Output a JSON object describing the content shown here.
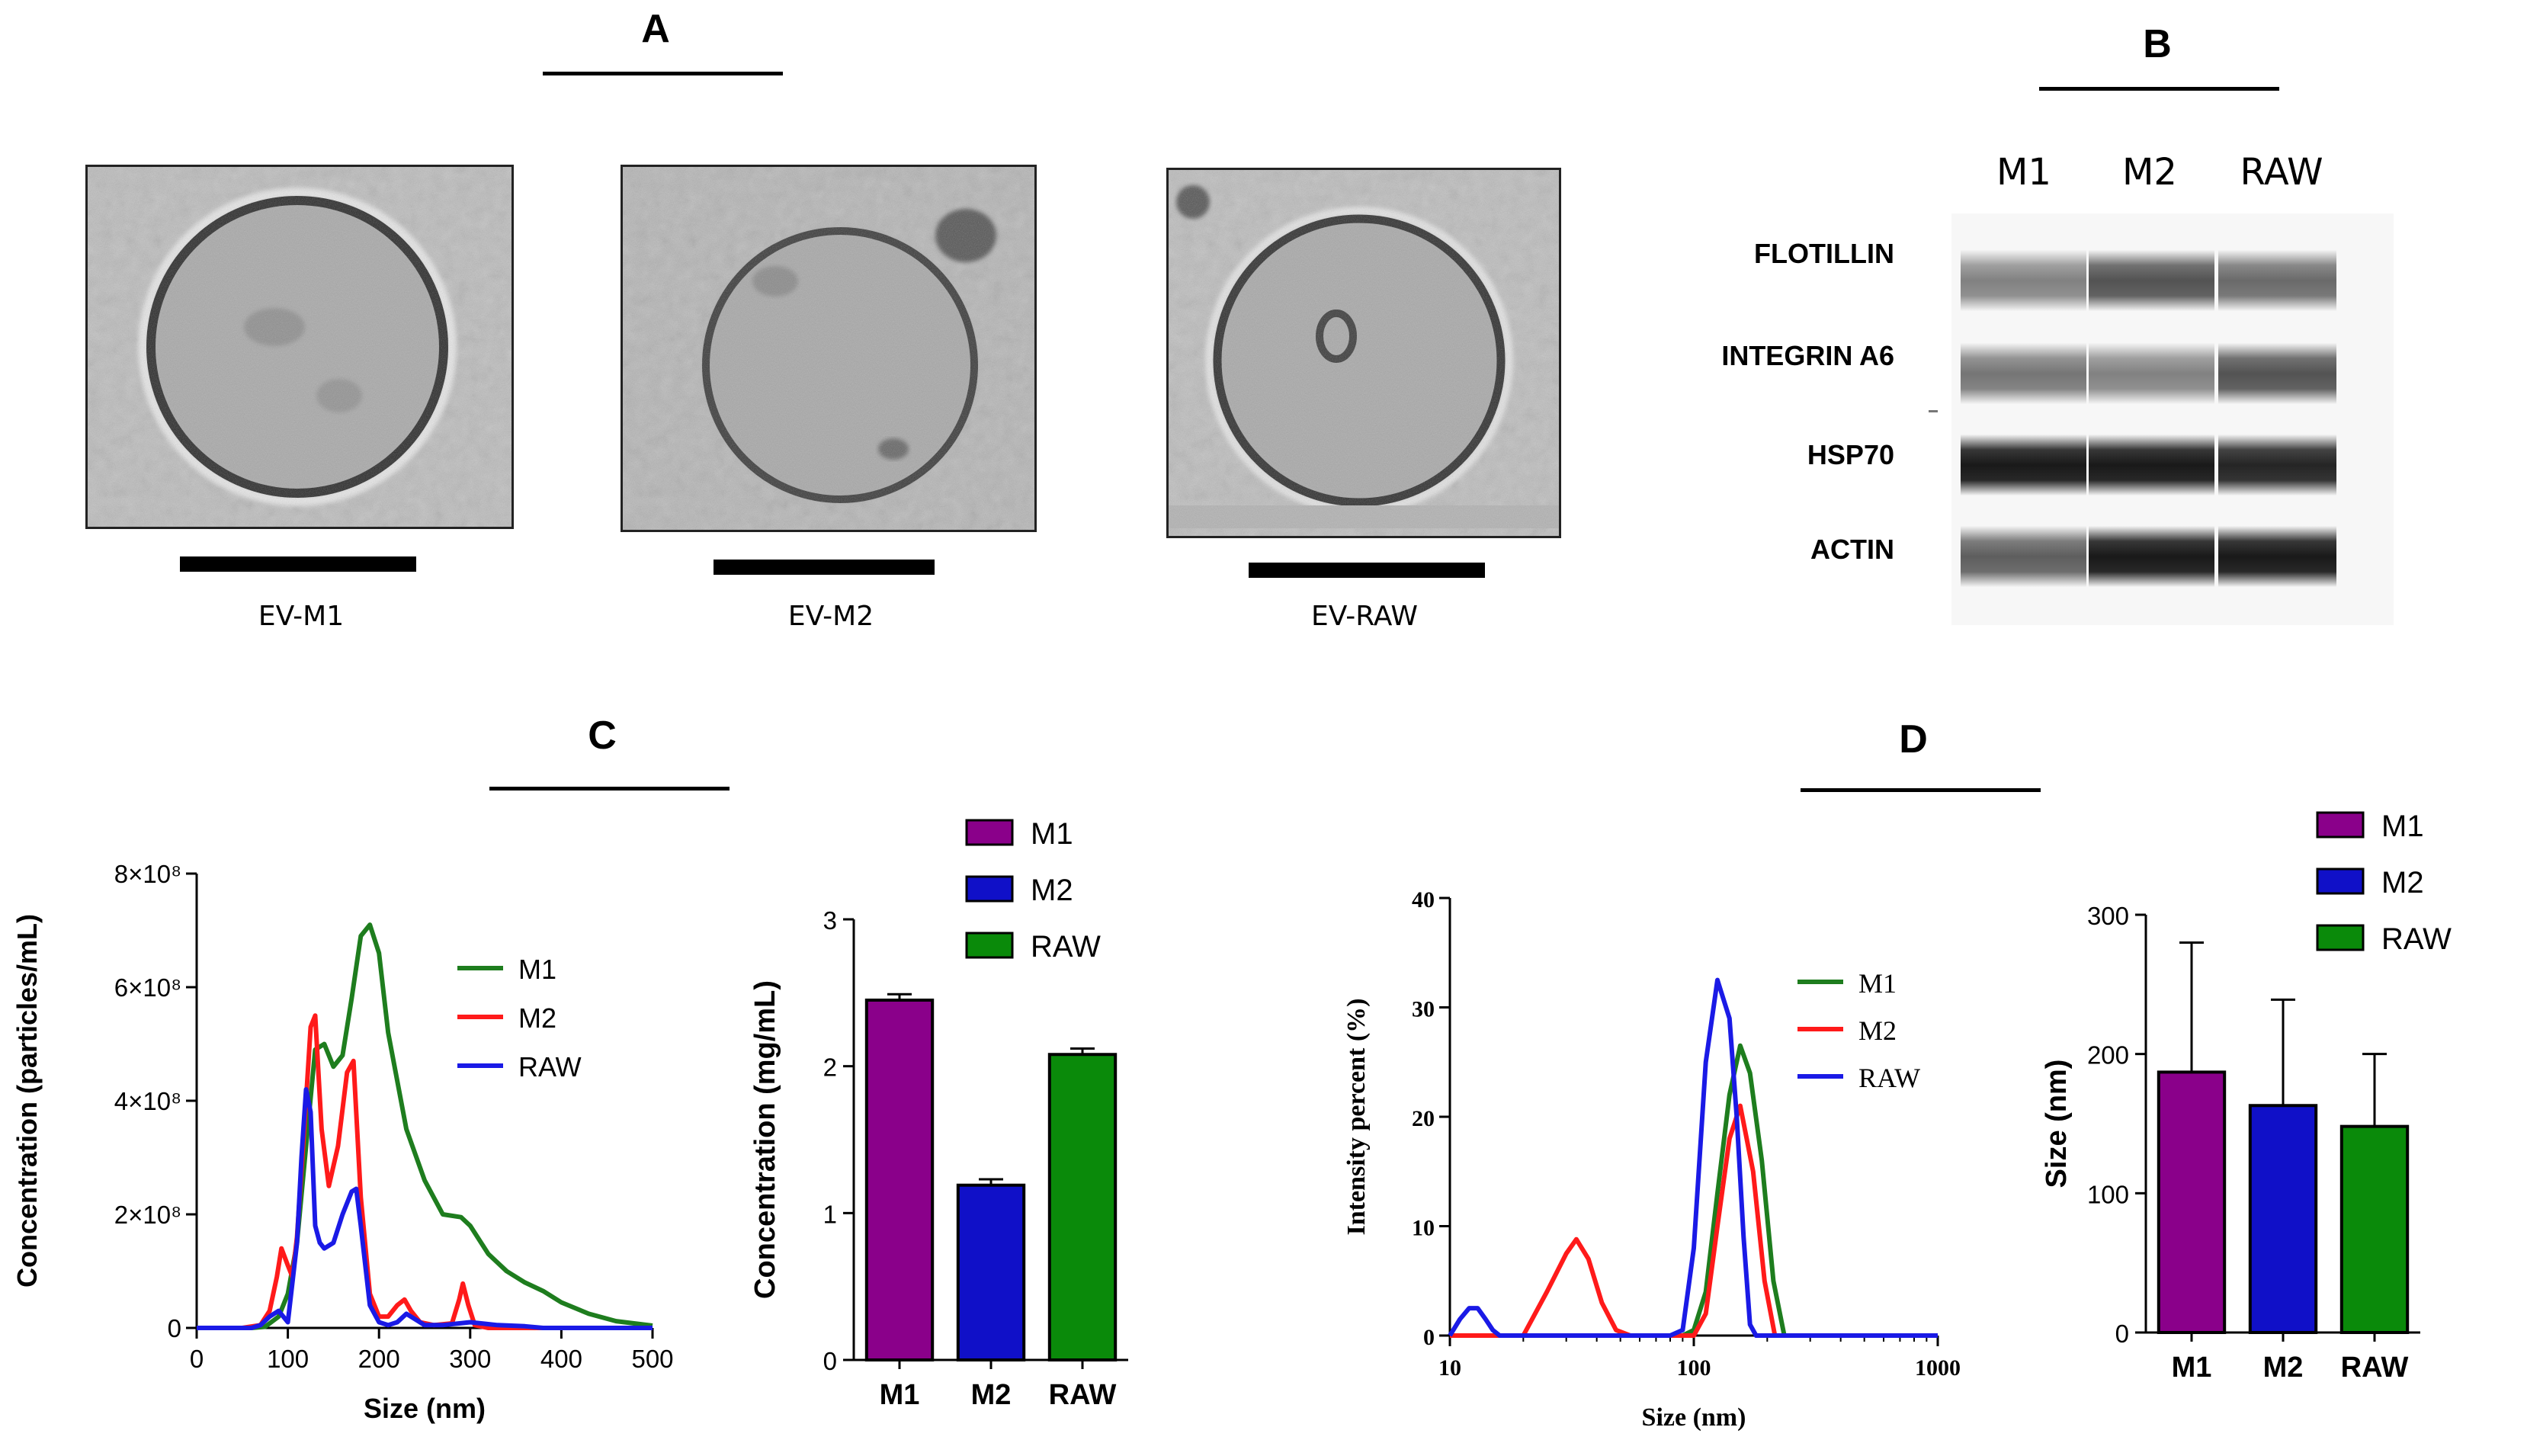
{
  "panels": {
    "a": "A",
    "b": "B",
    "c": "C",
    "d": "D"
  },
  "em_images": [
    {
      "caption": "EV-M1"
    },
    {
      "caption": "EV-M2"
    },
    {
      "caption": "EV-RAW"
    }
  ],
  "western_blot": {
    "columns": [
      "M1",
      "M2",
      "RAW"
    ],
    "rows": [
      "FLOTILLIN",
      "INTEGRIN A6",
      "HSP70",
      "ACTIN"
    ],
    "band_intensity": [
      [
        0.55,
        0.75,
        0.65
      ],
      [
        0.6,
        0.55,
        0.75
      ],
      [
        1.0,
        1.0,
        0.95
      ],
      [
        0.7,
        1.0,
        1.0
      ]
    ]
  },
  "colors": {
    "M1_line": "#1e7d1e",
    "M2_line": "#ff1a1a",
    "RAW_line": "#1a1ae6",
    "M1_bar": "#8a008a",
    "M2_bar": "#1010c8",
    "RAW_bar": "#0a8a0a"
  },
  "chart_data": [
    {
      "id": "nta",
      "type": "line",
      "xlabel": "Size (nm)",
      "ylabel": "Concentration (particles/mL)",
      "xlim": [
        0,
        500
      ],
      "ylim": [
        0,
        800000000
      ],
      "xticks": [
        "0",
        "100",
        "200",
        "300",
        "400",
        "500"
      ],
      "yticks": [
        "0",
        "2×10⁸",
        "4×10⁸",
        "6×10⁸",
        "8×10⁸"
      ],
      "series": [
        {
          "name": "M1",
          "x": [
            0,
            60,
            75,
            90,
            100,
            110,
            120,
            130,
            140,
            150,
            160,
            170,
            180,
            190,
            200,
            210,
            230,
            250,
            270,
            290,
            300,
            320,
            340,
            360,
            380,
            400,
            430,
            460,
            500
          ],
          "values": [
            0,
            0,
            2000000.0,
            20000000.0,
            60000000.0,
            150000000.0,
            320000000.0,
            490000000.0,
            500000000.0,
            460000000.0,
            480000000.0,
            580000000.0,
            690000000.0,
            710000000.0,
            660000000.0,
            520000000.0,
            350000000.0,
            260000000.0,
            200000000.0,
            195000000.0,
            180000000.0,
            130000000.0,
            100000000.0,
            80000000.0,
            65000000.0,
            45000000.0,
            25000000.0,
            12000000.0,
            4000000.0
          ]
        },
        {
          "name": "M2",
          "x": [
            0,
            50,
            70,
            80,
            88,
            93,
            100,
            105,
            110,
            118,
            125,
            130,
            137,
            145,
            155,
            165,
            172,
            180,
            190,
            200,
            210,
            220,
            228,
            235,
            245,
            260,
            280,
            288,
            292,
            298,
            305,
            320,
            500
          ],
          "values": [
            0,
            0,
            5000000.0,
            30000000.0,
            90000000.0,
            140000000.0,
            110000000.0,
            90000000.0,
            160000000.0,
            350000000.0,
            530000000.0,
            550000000.0,
            350000000.0,
            250000000.0,
            320000000.0,
            450000000.0,
            470000000.0,
            230000000.0,
            60000000.0,
            20000000.0,
            20000000.0,
            40000000.0,
            50000000.0,
            30000000.0,
            10000000.0,
            5000000.0,
            8000000.0,
            50000000.0,
            78000000.0,
            40000000.0,
            5000000.0,
            0,
            0
          ]
        },
        {
          "name": "RAW",
          "x": [
            0,
            60,
            70,
            80,
            90,
            100,
            110,
            115,
            120,
            125,
            130,
            135,
            140,
            150,
            160,
            170,
            175,
            180,
            190,
            200,
            210,
            220,
            230,
            240,
            250,
            270,
            300,
            330,
            360,
            380,
            500
          ],
          "values": [
            0,
            0,
            5000000.0,
            20000000.0,
            30000000.0,
            10000000.0,
            150000000.0,
            300000000.0,
            420000000.0,
            380000000.0,
            180000000.0,
            150000000.0,
            140000000.0,
            150000000.0,
            200000000.0,
            240000000.0,
            245000000.0,
            180000000.0,
            40000000.0,
            10000000.0,
            5000000.0,
            10000000.0,
            25000000.0,
            15000000.0,
            5000000.0,
            5000000.0,
            10000000.0,
            5000000.0,
            3000000.0,
            0,
            0
          ]
        }
      ],
      "legend": "top-right"
    },
    {
      "id": "conc_bar",
      "type": "bar",
      "categories": [
        "M1",
        "M2",
        "RAW"
      ],
      "values": [
        2.45,
        1.19,
        2.08
      ],
      "errors": [
        0.04,
        0.04,
        0.04
      ],
      "ylabel": "Concentration (mg/mL)",
      "ylim": [
        0,
        3
      ],
      "yticks": [
        "0",
        "1",
        "2",
        "3"
      ],
      "legend": [
        "M1",
        "M2",
        "RAW"
      ]
    },
    {
      "id": "dls",
      "type": "line",
      "xscale": "log",
      "xlabel": "Size (nm)",
      "ylabel": "Intensity percent (%)",
      "xlim": [
        10,
        1000
      ],
      "ylim": [
        0,
        40
      ],
      "xticks": [
        "10",
        "100",
        "1000"
      ],
      "yticks": [
        "0",
        "10",
        "20",
        "30",
        "40"
      ],
      "series": [
        {
          "name": "M1",
          "x": [
            10,
            80,
            90,
            100,
            112,
            125,
            140,
            155,
            170,
            190,
            212,
            235,
            260,
            290,
            1000
          ],
          "values": [
            0,
            0,
            0,
            0.5,
            4,
            13,
            22,
            26.5,
            24,
            16,
            5,
            0,
            0,
            0,
            0
          ]
        },
        {
          "name": "M2",
          "x": [
            10,
            20,
            25,
            30,
            33,
            37,
            42,
            48,
            55,
            60,
            80,
            100,
            112,
            125,
            140,
            155,
            175,
            195,
            215,
            240,
            1000
          ],
          "values": [
            0,
            0,
            4,
            7.5,
            8.8,
            7,
            3,
            0.5,
            0,
            0,
            0,
            0,
            2,
            10,
            18,
            21,
            15,
            5,
            0,
            0,
            0
          ]
        },
        {
          "name": "RAW",
          "x": [
            10,
            11,
            12,
            13,
            14,
            15,
            16,
            17,
            20,
            80,
            90,
            100,
            112,
            125,
            140,
            150,
            160,
            170,
            180,
            1000
          ],
          "values": [
            0,
            1.5,
            2.5,
            2.5,
            1.5,
            0.5,
            0,
            0,
            0,
            0,
            0.5,
            8,
            25,
            32.5,
            29,
            20,
            9,
            1,
            0,
            0
          ]
        }
      ],
      "legend": "top-right"
    },
    {
      "id": "size_bar",
      "type": "bar",
      "categories": [
        "M1",
        "M2",
        "RAW"
      ],
      "values": [
        187,
        163,
        148
      ],
      "errors": [
        93,
        76,
        52
      ],
      "ylabel": "Size (nm)",
      "ylim": [
        0,
        300
      ],
      "yticks": [
        "0",
        "100",
        "200",
        "300"
      ],
      "legend": [
        "M1",
        "M2",
        "RAW"
      ]
    }
  ]
}
